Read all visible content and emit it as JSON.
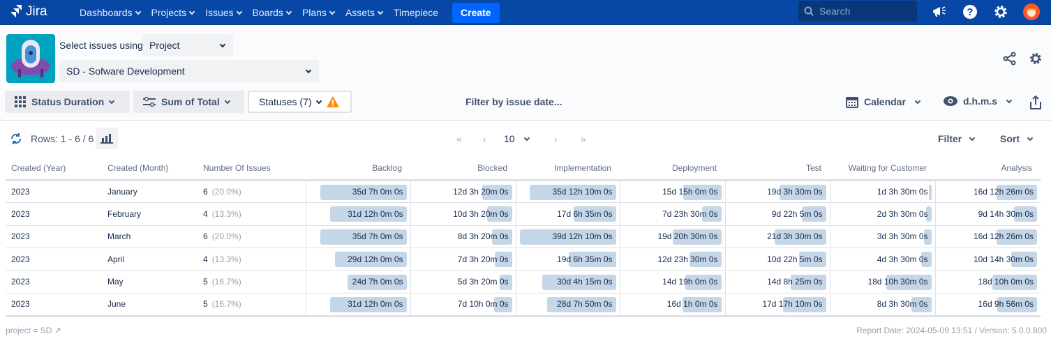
{
  "nav": {
    "logo": "Jira",
    "items": [
      "Dashboards",
      "Projects",
      "Issues",
      "Boards",
      "Plans",
      "Assets",
      "Timepiece"
    ],
    "create": "Create",
    "search_placeholder": "Search"
  },
  "selector": {
    "label": "Select issues using",
    "mode": "Project",
    "project": "SD - Sofware Development"
  },
  "toolbar": {
    "report_type": "Status Duration",
    "aggregation": "Sum of Total",
    "statuses": "Statuses (7)",
    "date_filter": "Filter by issue date...",
    "calendar": "Calendar",
    "format": "d.h.m.s"
  },
  "table_bar": {
    "rows": "Rows: 1 - 6 / 6",
    "page_size": "10",
    "filter": "Filter",
    "sort": "Sort"
  },
  "columns": [
    "Created (Year)",
    "Created (Month)",
    "Number Of Issues",
    "Backlog",
    "Blocked",
    "Implementation",
    "Deployment",
    "Test",
    "Waiting for Customer",
    "Analysis"
  ],
  "rows": [
    {
      "year": "2023",
      "month": "January",
      "count": "6",
      "pct": "(20.0%)",
      "values": [
        "35d 7h 0m 0s",
        "12d 3h 20m 0s",
        "35d 12h 10m 0s",
        "15d 15h 0m 0s",
        "19d 3h 30m 0s",
        "1d 3h 30m 0s",
        "16d 12h 26m 0s"
      ]
    },
    {
      "year": "2023",
      "month": "February",
      "count": "4",
      "pct": "(13.3%)",
      "values": [
        "31d 12h 0m 0s",
        "10d 3h 20m 0s",
        "17d 6h 35m 0s",
        "7d 23h 30m 0s",
        "9d 22h 5m 0s",
        "2d 3h 30m 0s",
        "9d 14h 30m 0s"
      ]
    },
    {
      "year": "2023",
      "month": "March",
      "count": "6",
      "pct": "(20.0%)",
      "values": [
        "35d 7h 0m 0s",
        "8d 3h 20m 0s",
        "39d 12h 10m 0s",
        "19d 20h 30m 0s",
        "21d 3h 30m 0s",
        "3d 3h 30m 0s",
        "16d 12h 26m 0s"
      ]
    },
    {
      "year": "2023",
      "month": "April",
      "count": "4",
      "pct": "(13.3%)",
      "values": [
        "29d 12h 0m 0s",
        "7d 3h 20m 0s",
        "19d 6h 35m 0s",
        "12d 23h 30m 0s",
        "10d 22h 5m 0s",
        "4d 3h 30m 0s",
        "10d 14h 30m 0s"
      ]
    },
    {
      "year": "2023",
      "month": "May",
      "count": "5",
      "pct": "(16.7%)",
      "values": [
        "24d 7h 0m 0s",
        "5d 3h 20m 0s",
        "30d 4h 15m 0s",
        "14d 19h 0m 0s",
        "14d 8h 25m 0s",
        "18d 10h 30m 0s",
        "18d 10h 0m 0s"
      ]
    },
    {
      "year": "2023",
      "month": "June",
      "count": "5",
      "pct": "(16.7%)",
      "values": [
        "31d 12h 0m 0s",
        "7d 10h 0m 0s",
        "28d 7h 50m 0s",
        "16d 1h 0m 0s",
        "17d 17h 10m 0s",
        "8d 3h 30m 0s",
        "16d 9h 56m 0s"
      ]
    }
  ],
  "footer": {
    "query": "project = SD",
    "report": "Report Date: 2024-05-09 13:51 / Version: 5.0.0.800"
  },
  "colors": {
    "nav": "#0747a6",
    "bar": "#c5d6e6",
    "create": "#0065ff",
    "warning": "#ff8b00"
  }
}
